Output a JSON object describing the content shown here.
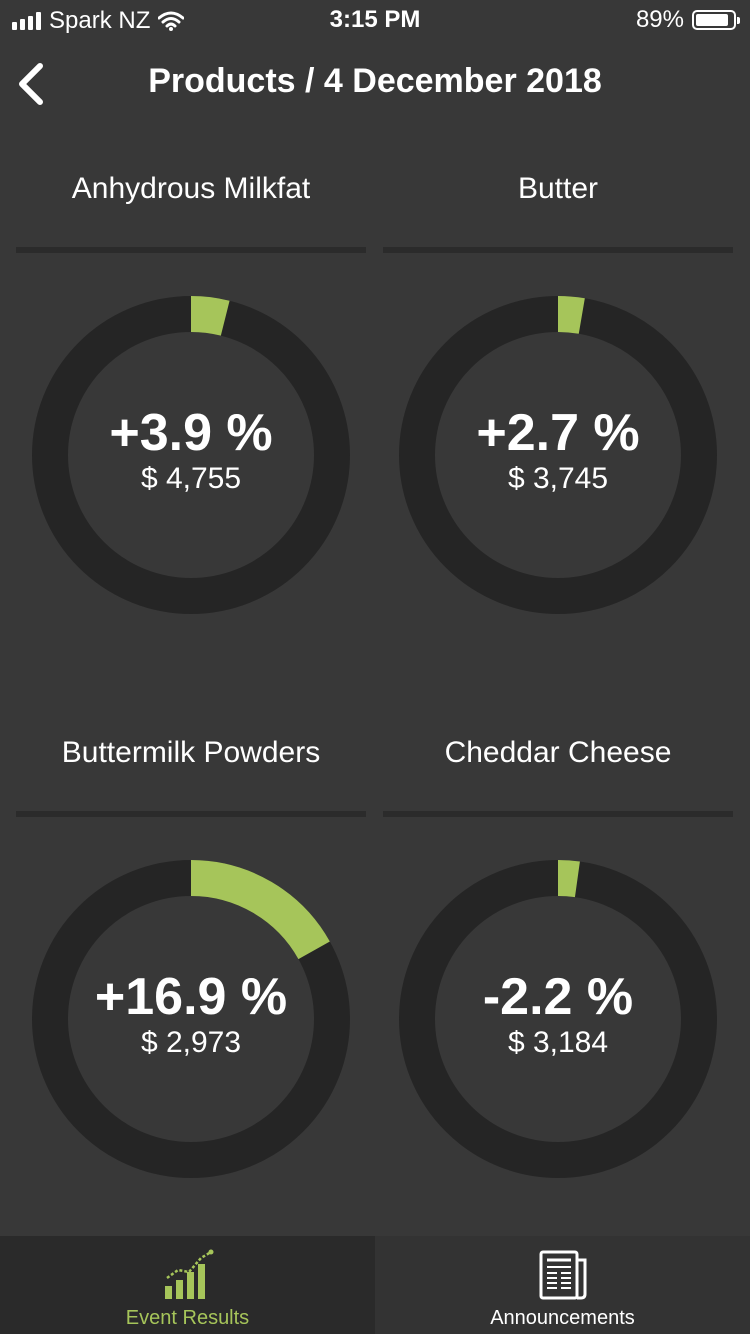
{
  "status": {
    "carrier": "Spark NZ",
    "time": "3:15 PM",
    "battery": "89%",
    "battery_level": 0.89
  },
  "nav": {
    "back_icon": "chevron-left-icon",
    "title": "Products / 4 December 2018"
  },
  "products": [
    {
      "name": "Anhydrous Milkfat",
      "change": "+3.9 %",
      "price": "$ 4,755",
      "change_value": 3.9
    },
    {
      "name": "Butter",
      "change": "+2.7 %",
      "price": "$ 3,745",
      "change_value": 2.7
    },
    {
      "name": "Buttermilk Powders",
      "change": "+16.9 %",
      "price": "$ 2,973",
      "change_value": 16.9
    },
    {
      "name": "Cheddar Cheese",
      "change": "-2.2 %",
      "price": "$ 3,184",
      "change_value": -2.2
    }
  ],
  "tabs": [
    {
      "label": "Event Results",
      "icon": "bar-chart-icon",
      "active": true
    },
    {
      "label": "Announcements",
      "icon": "newspaper-icon",
      "active": false
    }
  ],
  "colors": {
    "accent": "#a6c55a",
    "ring_track": "#252525",
    "background": "#383838",
    "tab_active_label": "#a6c55a",
    "tab_inactive_label": "#ffffff"
  }
}
